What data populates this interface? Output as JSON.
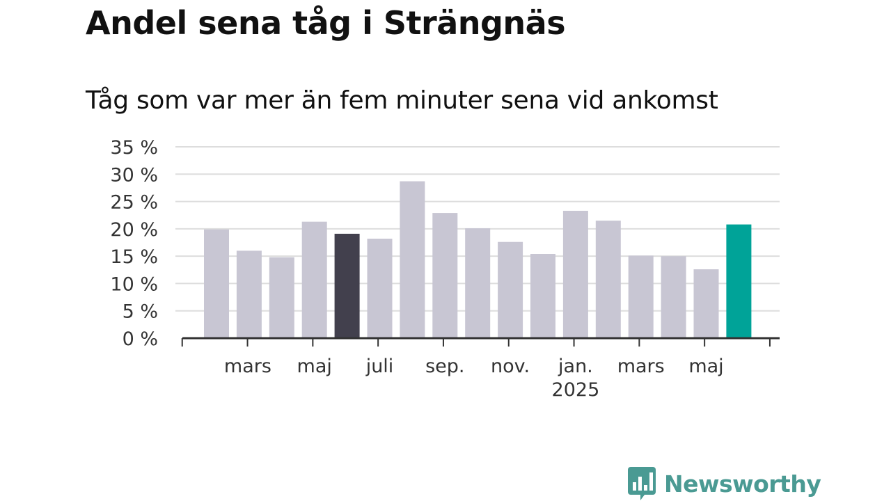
{
  "title": "Andel sena tåg i Strängnäs",
  "subtitle": "Tåg som var mer än fem minuter sena vid ankomst",
  "brand": {
    "name": "Newsworthy",
    "color": "#4a9a93",
    "icon": "newsworthy-logo-icon"
  },
  "colors": {
    "default": "#c8c6d3",
    "highlight_dark": "#42404d",
    "highlight_latest": "#00a398",
    "axis": "#333333",
    "grid": "#dddddd"
  },
  "chart_data": {
    "type": "bar",
    "title": "Andel sena tåg i Strängnäs",
    "subtitle": "Tåg som var mer än fem minuter sena vid ankomst",
    "xlabel": "",
    "ylabel": "",
    "ylim": [
      0,
      35
    ],
    "yticks": [
      0,
      5,
      10,
      15,
      20,
      25,
      30,
      35
    ],
    "ytick_labels": [
      "0 %",
      "5 %",
      "10 %",
      "15 %",
      "20 %",
      "25 %",
      "30 %",
      "35 %"
    ],
    "categories": [
      "2024-02",
      "2024-03",
      "2024-04",
      "2024-05",
      "2024-06",
      "2024-07",
      "2024-08",
      "2024-09",
      "2024-10",
      "2024-11",
      "2024-12",
      "2025-01",
      "2025-02",
      "2025-03",
      "2025-04",
      "2025-05",
      "2025-06"
    ],
    "values": [
      19.9,
      16.0,
      14.8,
      21.3,
      19.1,
      18.2,
      28.7,
      22.9,
      20.1,
      17.6,
      15.4,
      23.3,
      21.5,
      15.1,
      15.0,
      12.6,
      20.8
    ],
    "highlights": {
      "2024-06": "highlight_dark",
      "2025-06": "highlight_latest"
    },
    "xtick_labels": [
      {
        "category": "2024-03",
        "label": "mars"
      },
      {
        "category": "2024-05",
        "label": "maj"
      },
      {
        "category": "2024-07",
        "label": "juli"
      },
      {
        "category": "2024-09",
        "label": "sep."
      },
      {
        "category": "2024-11",
        "label": "nov."
      },
      {
        "category": "2025-01",
        "label": "jan.",
        "sublabel": "2025"
      },
      {
        "category": "2025-03",
        "label": "mars"
      },
      {
        "category": "2025-05",
        "label": "maj"
      }
    ],
    "grid": true,
    "legend": "none"
  }
}
